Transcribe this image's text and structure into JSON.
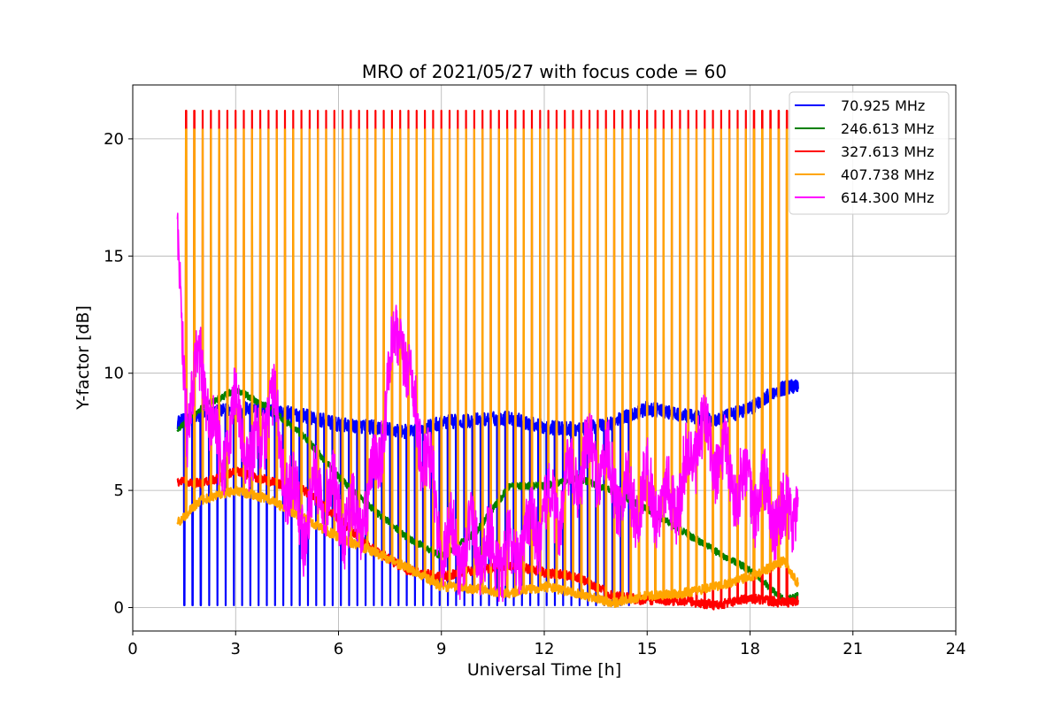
{
  "chart_data": {
    "type": "line",
    "title": "MRO of 2021/05/27 with focus code = 60",
    "xlabel": "Universal Time [h]",
    "ylabel": "Y-factor [dB]",
    "xlim": [
      0,
      24
    ],
    "ylim": [
      -1,
      22.3
    ],
    "xticks": [
      0,
      3,
      6,
      9,
      12,
      15,
      18,
      21,
      24
    ],
    "yticks": [
      0,
      5,
      10,
      15,
      20
    ],
    "grid": true,
    "legend_position": "top-right",
    "series": [
      {
        "name": " 70.925 MHz",
        "color": "#0000ff",
        "time_range": [
          1.3,
          19.4
        ],
        "baseline": {
          "x": [
            1.3,
            2.0,
            3.0,
            4.0,
            5.0,
            6.0,
            7.0,
            8.0,
            9.0,
            10.0,
            11.0,
            12.0,
            13.0,
            14.0,
            15.0,
            16.0,
            17.0,
            18.0,
            18.8,
            19.4
          ],
          "y": [
            7.9,
            8.2,
            8.5,
            8.4,
            8.2,
            7.8,
            7.7,
            7.5,
            7.9,
            8.0,
            8.1,
            7.7,
            7.6,
            7.9,
            8.5,
            8.2,
            8.0,
            8.5,
            9.3,
            9.5
          ]
        },
        "spikes": {
          "x_start": 1.5,
          "x_end": 14.6,
          "period": 0.24,
          "low": 0.1
        }
      },
      {
        "name": "246.613 MHz",
        "color": "#008000",
        "time_range": [
          1.3,
          19.4
        ],
        "baseline": {
          "x": [
            1.3,
            2.0,
            3.0,
            4.0,
            5.0,
            6.0,
            7.0,
            8.0,
            9.0,
            10.0,
            11.0,
            12.0,
            13.0,
            14.0,
            15.0,
            16.0,
            17.0,
            18.0,
            19.0,
            19.4
          ],
          "y": [
            7.6,
            8.5,
            9.3,
            8.5,
            7.3,
            5.6,
            4.2,
            3.0,
            2.2,
            3.2,
            5.2,
            5.2,
            5.5,
            5.0,
            4.2,
            3.3,
            2.4,
            1.6,
            0.3,
            0.5
          ]
        }
      },
      {
        "name": "327.613 MHz",
        "color": "#ff0000",
        "time_range": [
          1.3,
          19.4
        ],
        "baseline": {
          "x": [
            1.3,
            2.0,
            3.0,
            4.0,
            5.0,
            6.0,
            7.0,
            8.0,
            9.0,
            10.0,
            11.0,
            12.0,
            13.0,
            14.0,
            15.0,
            16.0,
            17.0,
            18.0,
            19.0,
            19.4
          ],
          "y": [
            5.4,
            5.3,
            5.8,
            5.4,
            5.0,
            3.8,
            2.5,
            1.6,
            1.3,
            1.6,
            1.8,
            1.5,
            1.3,
            0.5,
            0.3,
            0.3,
            0.1,
            0.4,
            0.2,
            0.3
          ]
        },
        "spikes": {
          "x_start": 1.55,
          "x_end": 19.3,
          "period": 0.24,
          "high": 21.2
        }
      },
      {
        "name": "407.738 MHz",
        "color": "#ffa500",
        "time_range": [
          1.3,
          19.4
        ],
        "baseline": {
          "x": [
            1.3,
            2.0,
            3.0,
            4.0,
            5.0,
            6.0,
            7.0,
            8.0,
            9.0,
            10.0,
            11.0,
            12.0,
            13.0,
            14.0,
            15.0,
            16.0,
            17.0,
            18.0,
            19.0,
            19.4
          ],
          "y": [
            3.6,
            4.6,
            5.0,
            4.6,
            3.8,
            3.0,
            2.4,
            1.7,
            0.9,
            0.8,
            0.6,
            0.9,
            0.6,
            0.2,
            0.5,
            0.6,
            0.9,
            1.3,
            2.0,
            1.0
          ]
        },
        "spikes": {
          "x_start": 1.55,
          "x_end": 19.3,
          "period": 0.24,
          "high": 20.4,
          "mid": 10.8
        }
      },
      {
        "name": "614.300 MHz",
        "color": "#ff00ff",
        "time_range": [
          1.3,
          19.4
        ],
        "baseline": {
          "x": [
            1.3,
            1.6,
            2.0,
            2.5,
            3.0,
            3.5,
            4.0,
            4.5,
            5.0,
            5.5,
            6.0,
            6.5,
            7.0,
            7.5,
            7.8,
            8.2,
            8.6,
            9.0,
            9.5,
            10.0,
            10.5,
            11.0,
            11.5,
            12.0,
            12.5,
            13.0,
            13.5,
            14.0,
            14.5,
            15.0,
            15.5,
            16.0,
            16.5,
            17.0,
            17.5,
            18.0,
            18.5,
            19.0,
            19.4
          ],
          "y": [
            15.5,
            8.0,
            10.5,
            6.0,
            8.5,
            6.0,
            9.0,
            5.5,
            3.5,
            5.5,
            4.0,
            3.5,
            5.0,
            10.0,
            12.0,
            8.5,
            6.0,
            3.0,
            2.5,
            3.0,
            2.2,
            2.0,
            3.0,
            4.0,
            4.5,
            6.0,
            6.5,
            5.5,
            4.5,
            5.0,
            4.5,
            5.0,
            7.5,
            6.5,
            5.5,
            5.0,
            4.5,
            3.5,
            5.0
          ]
        }
      }
    ]
  }
}
